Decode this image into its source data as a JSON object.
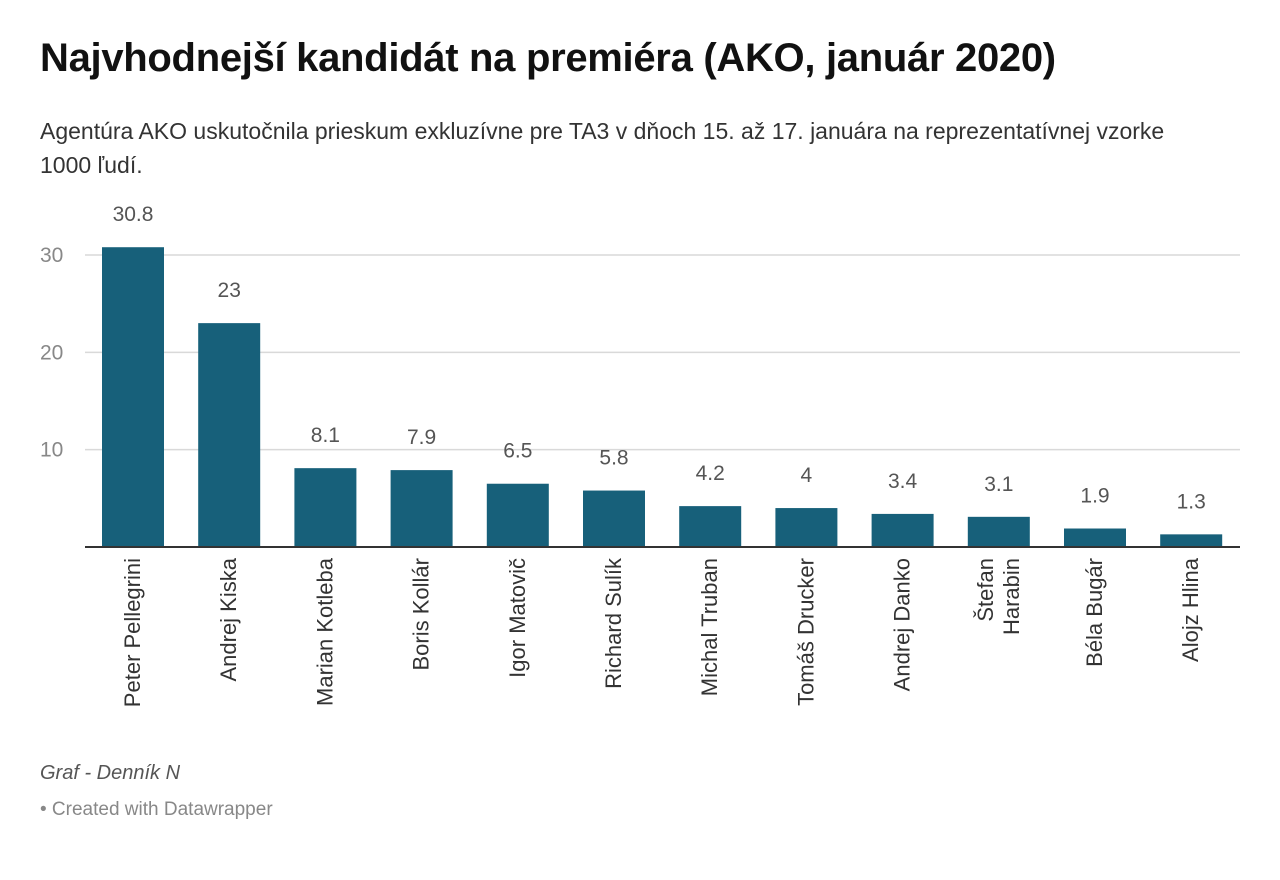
{
  "header": {
    "title": "Najvhodnejší kandidát na premiéra (AKO, január 2020)",
    "subtitle": "Agentúra AKO uskutočnila prieskum exkluzívne pre TA3 v dňoch 15. až 17. januára na reprezentatívnej vzorke 1000 ľudí."
  },
  "footer": {
    "source": "Graf - Denník N",
    "credit": "• Created with Datawrapper"
  },
  "colors": {
    "bar": "#17607a",
    "grid": "#d9d9d9",
    "axis": "#333333",
    "tick_text": "#888888",
    "label_text": "#555555"
  },
  "chart_data": {
    "type": "bar",
    "categories": [
      "Peter Pellegrini",
      "Andrej Kiska",
      "Marian Kotleba",
      "Boris Kollár",
      "Igor Matovič",
      "Richard Sulík",
      "Michal Truban",
      "Tomáš Drucker",
      "Andrej Danko",
      "Štefan Harabin",
      "Béla Bugár",
      "Alojz Hlina"
    ],
    "category_lines": [
      [
        "Peter Pellegrini"
      ],
      [
        "Andrej Kiska"
      ],
      [
        "Marian Kotleba"
      ],
      [
        "Boris Kollár"
      ],
      [
        "Igor Matovič"
      ],
      [
        "Richard Sulík"
      ],
      [
        "Michal Truban"
      ],
      [
        "Tomáš Drucker"
      ],
      [
        "Andrej Danko"
      ],
      [
        "Štefan",
        "Harabin"
      ],
      [
        "Béla Bugár"
      ],
      [
        "Alojz Hlina"
      ]
    ],
    "values": [
      30.8,
      23,
      8.1,
      7.9,
      6.5,
      5.8,
      4.2,
      4,
      3.4,
      3.1,
      1.9,
      1.3
    ],
    "value_labels": [
      "30.8",
      "23",
      "8.1",
      "7.9",
      "6.5",
      "5.8",
      "4.2",
      "4",
      "3.4",
      "3.1",
      "1.9",
      "1.3"
    ],
    "y_ticks": [
      10,
      20,
      30
    ],
    "ylim": [
      0,
      30
    ],
    "grid": true,
    "xlabel": "",
    "ylabel": ""
  }
}
